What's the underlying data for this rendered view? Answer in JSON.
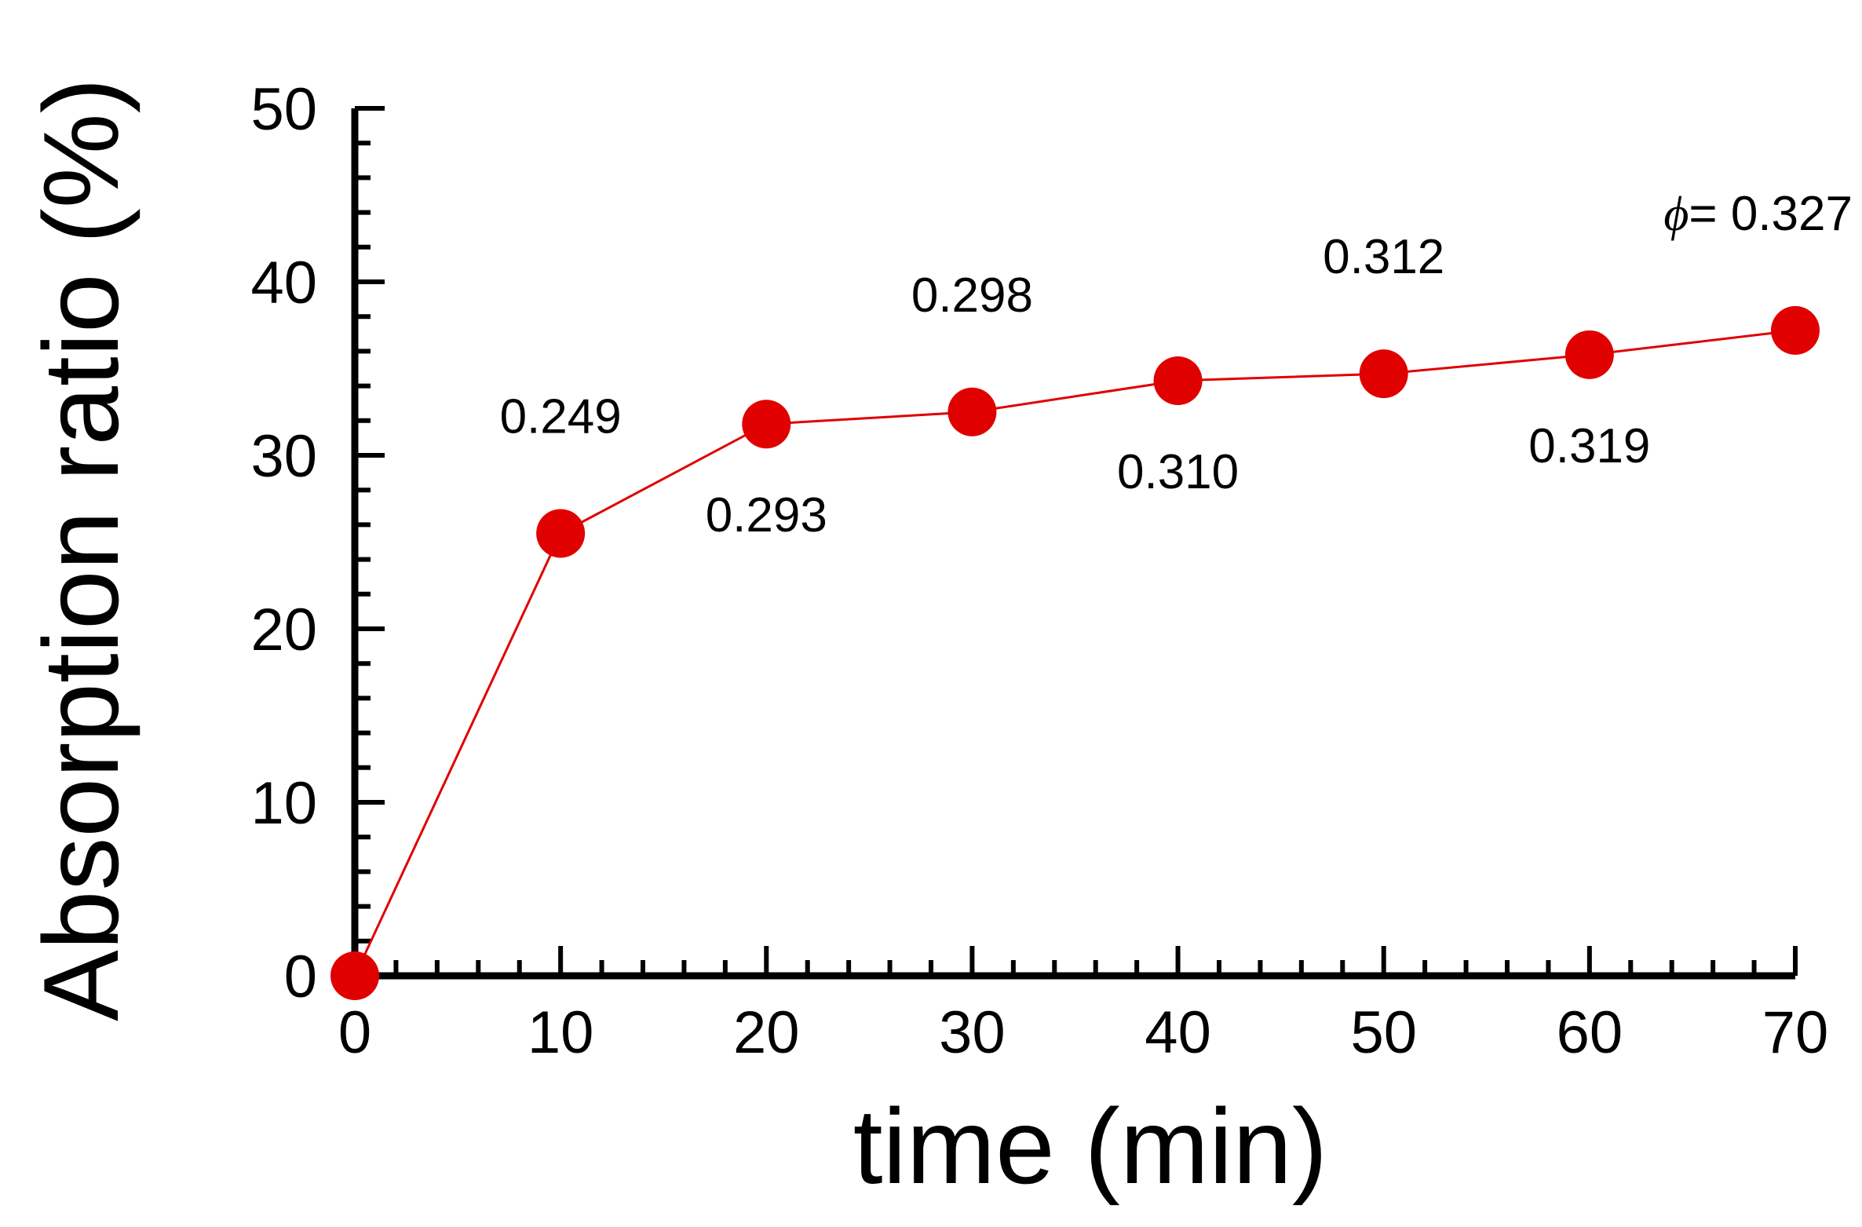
{
  "chart_data": {
    "type": "line",
    "title": "",
    "xlabel": "time (min)",
    "ylabel": "Absorption ratio (%)",
    "xlim": [
      0,
      70
    ],
    "ylim": [
      0,
      50
    ],
    "x_ticks": [
      "0",
      "10",
      "20",
      "30",
      "40",
      "50",
      "60",
      "70"
    ],
    "y_ticks": [
      "0",
      "10",
      "20",
      "30",
      "40",
      "50"
    ],
    "grid": false,
    "series": [
      {
        "x": [
          0,
          10,
          20,
          30,
          40,
          50,
          60,
          70
        ],
        "y": [
          0,
          25.5,
          31.8,
          32.5,
          34.3,
          34.7,
          35.8,
          37.2
        ]
      }
    ],
    "annotations": [
      {
        "x": 10,
        "position": "above",
        "prefix": "",
        "text": "0.249"
      },
      {
        "x": 20,
        "position": "below",
        "prefix": "",
        "text": "0.293"
      },
      {
        "x": 30,
        "position": "above",
        "prefix": "",
        "text": "0.298"
      },
      {
        "x": 40,
        "position": "below",
        "prefix": "",
        "text": "0.310"
      },
      {
        "x": 50,
        "position": "above",
        "prefix": "",
        "text": "0.312"
      },
      {
        "x": 60,
        "position": "below",
        "prefix": "",
        "text": "0.319"
      },
      {
        "x": 70,
        "position": "above",
        "prefix": "ϕ",
        "text": "= 0.327"
      }
    ],
    "colors": {
      "series": "#e00000",
      "axis": "#000000"
    }
  }
}
